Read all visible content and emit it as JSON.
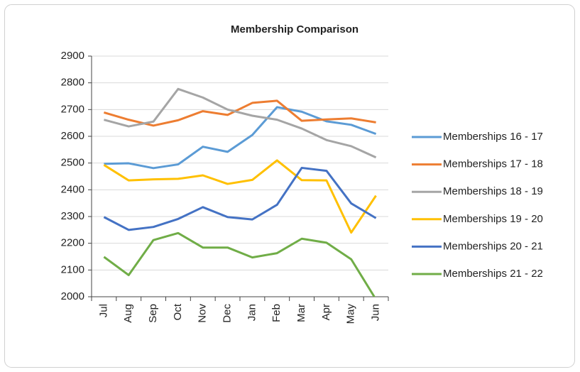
{
  "chart_data": {
    "type": "line",
    "title": "Membership Comparison",
    "categories": [
      "Jul",
      "Aug",
      "Sep",
      "Oct",
      "Nov",
      "Dec",
      "Jan",
      "Feb",
      "Mar",
      "Apr",
      "May",
      "Jun"
    ],
    "series": [
      {
        "name": "Memberships 16 - 17",
        "color": "#5b9bd5",
        "values": [
          2497,
          2499,
          2481,
          2495,
          2561,
          2542,
          2605,
          2709,
          2692,
          2656,
          2643,
          2609
        ]
      },
      {
        "name": "Memberships 17 - 18",
        "color": "#ed7d31",
        "values": [
          2689,
          2662,
          2640,
          2660,
          2694,
          2680,
          2725,
          2733,
          2658,
          2663,
          2667,
          2652
        ]
      },
      {
        "name": "Memberships 18 - 19",
        "color": "#a5a5a5",
        "values": [
          2662,
          2637,
          2655,
          2777,
          2745,
          2700,
          2677,
          2662,
          2629,
          2586,
          2563,
          2521
        ]
      },
      {
        "name": "Memberships 19 - 20",
        "color": "#ffc000",
        "values": [
          2493,
          2435,
          2439,
          2441,
          2454,
          2422,
          2437,
          2510,
          2436,
          2435,
          2240,
          2378
        ]
      },
      {
        "name": "Memberships 20 - 21",
        "color": "#4472c4",
        "values": [
          2298,
          2250,
          2261,
          2291,
          2335,
          2298,
          2289,
          2344,
          2482,
          2471,
          2349,
          2294
        ]
      },
      {
        "name": "Memberships 21 - 22",
        "color": "#70ad47",
        "values": [
          2149,
          2081,
          2212,
          2238,
          2184,
          2184,
          2147,
          2163,
          2217,
          2202,
          2140,
          1990
        ]
      }
    ],
    "ylim": [
      2000,
      2900
    ],
    "yticks": [
      2000,
      2100,
      2200,
      2300,
      2400,
      2500,
      2600,
      2700,
      2800,
      2900
    ],
    "grid": true,
    "legend": "right"
  }
}
